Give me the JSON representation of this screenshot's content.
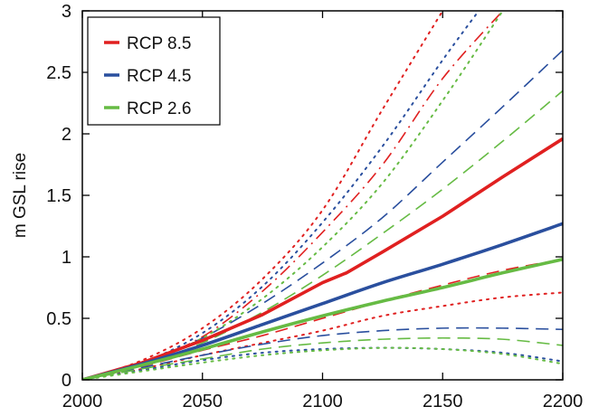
{
  "chart_data": {
    "type": "line",
    "title": "",
    "xlabel": "",
    "ylabel": "m GSL rise",
    "xlim": [
      2000,
      2200
    ],
    "ylim": [
      0,
      3
    ],
    "x_ticks": [
      2000,
      2050,
      2100,
      2150,
      2200
    ],
    "y_ticks": [
      0,
      0.5,
      1,
      1.5,
      2,
      2.5,
      3
    ],
    "y_tick_labels": [
      "0",
      "0.5",
      "1",
      "1.5",
      "2",
      "2.5",
      "3"
    ],
    "grid": false,
    "legend_position": "top-left",
    "legend": [
      {
        "label": "RCP 8.5",
        "color": "#e02020"
      },
      {
        "label": "RCP 4.5",
        "color": "#2a4f9e"
      },
      {
        "label": "RCP 2.6",
        "color": "#66bb44"
      }
    ],
    "series": [
      {
        "scenario": "RCP 8.5",
        "style": "dotted-outer-upper",
        "color": "#e02020",
        "x": [
          2000,
          2025,
          2050,
          2075,
          2100,
          2125,
          2150
        ],
        "y": [
          0,
          0.16,
          0.42,
          0.82,
          1.38,
          2.2,
          3.0
        ]
      },
      {
        "scenario": "RCP 8.5",
        "style": "dashdot-upper",
        "color": "#e02020",
        "x": [
          2000,
          2025,
          2050,
          2075,
          2100,
          2125,
          2150,
          2175
        ],
        "y": [
          0,
          0.14,
          0.35,
          0.72,
          1.2,
          1.75,
          2.45,
          3.0
        ]
      },
      {
        "scenario": "RCP 8.5",
        "style": "solid",
        "color": "#e02020",
        "x": [
          2000,
          2025,
          2050,
          2075,
          2100,
          2110,
          2125,
          2150,
          2175,
          2200
        ],
        "y": [
          0,
          0.14,
          0.32,
          0.53,
          0.79,
          0.87,
          1.04,
          1.33,
          1.65,
          1.96
        ]
      },
      {
        "scenario": "RCP 8.5",
        "style": "dashed-lower",
        "color": "#e02020",
        "x": [
          2000,
          2025,
          2050,
          2075,
          2100,
          2125,
          2150,
          2175,
          2200
        ],
        "y": [
          0,
          0.11,
          0.24,
          0.36,
          0.5,
          0.64,
          0.77,
          0.89,
          0.98
        ]
      },
      {
        "scenario": "RCP 8.5",
        "style": "dotted-lower",
        "color": "#e02020",
        "x": [
          2000,
          2025,
          2050,
          2075,
          2100,
          2125,
          2150,
          2175,
          2200
        ],
        "y": [
          0,
          0.09,
          0.2,
          0.3,
          0.4,
          0.52,
          0.6,
          0.67,
          0.71
        ]
      },
      {
        "scenario": "RCP 4.5",
        "style": "dotted-upper",
        "color": "#2a4f9e",
        "x": [
          2000,
          2025,
          2050,
          2075,
          2100,
          2125,
          2150,
          2165
        ],
        "y": [
          0,
          0.14,
          0.38,
          0.76,
          1.28,
          1.9,
          2.6,
          3.0
        ]
      },
      {
        "scenario": "RCP 4.5",
        "style": "dashed-upper",
        "color": "#2a4f9e",
        "x": [
          2000,
          2025,
          2050,
          2075,
          2100,
          2125,
          2150,
          2175,
          2200
        ],
        "y": [
          0,
          0.13,
          0.34,
          0.62,
          0.95,
          1.32,
          1.77,
          2.22,
          2.68
        ]
      },
      {
        "scenario": "RCP 4.5",
        "style": "solid",
        "color": "#2a4f9e",
        "x": [
          2000,
          2025,
          2050,
          2075,
          2100,
          2125,
          2150,
          2175,
          2200
        ],
        "y": [
          0,
          0.13,
          0.28,
          0.45,
          0.62,
          0.79,
          0.94,
          1.1,
          1.27
        ]
      },
      {
        "scenario": "RCP 4.5",
        "style": "dashed-lower",
        "color": "#2a4f9e",
        "x": [
          2000,
          2025,
          2050,
          2075,
          2100,
          2125,
          2150,
          2175,
          2200
        ],
        "y": [
          0,
          0.1,
          0.2,
          0.29,
          0.36,
          0.4,
          0.42,
          0.42,
          0.41
        ]
      },
      {
        "scenario": "RCP 4.5",
        "style": "dotted-lower",
        "color": "#2a4f9e",
        "x": [
          2000,
          2025,
          2050,
          2075,
          2100,
          2125,
          2150,
          2175,
          2200
        ],
        "y": [
          0,
          0.08,
          0.16,
          0.22,
          0.25,
          0.26,
          0.25,
          0.22,
          0.15
        ]
      },
      {
        "scenario": "RCP 2.6",
        "style": "dotted-upper",
        "color": "#66bb44",
        "x": [
          2000,
          2025,
          2050,
          2075,
          2100,
          2125,
          2150,
          2175
        ],
        "y": [
          0,
          0.13,
          0.34,
          0.66,
          1.08,
          1.6,
          2.27,
          3.0
        ]
      },
      {
        "scenario": "RCP 2.6",
        "style": "dashed-upper",
        "color": "#66bb44",
        "x": [
          2000,
          2025,
          2050,
          2075,
          2100,
          2125,
          2150,
          2175,
          2200
        ],
        "y": [
          0,
          0.12,
          0.3,
          0.55,
          0.85,
          1.19,
          1.55,
          1.94,
          2.35
        ]
      },
      {
        "scenario": "RCP 2.6",
        "style": "solid",
        "color": "#66bb44",
        "x": [
          2000,
          2025,
          2050,
          2075,
          2100,
          2125,
          2150,
          2175,
          2200
        ],
        "y": [
          0,
          0.12,
          0.25,
          0.39,
          0.52,
          0.64,
          0.75,
          0.87,
          0.98
        ]
      },
      {
        "scenario": "RCP 2.6",
        "style": "dashed-lower",
        "color": "#66bb44",
        "x": [
          2000,
          2025,
          2050,
          2075,
          2100,
          2125,
          2150,
          2175,
          2200
        ],
        "y": [
          0,
          0.09,
          0.17,
          0.25,
          0.3,
          0.33,
          0.34,
          0.33,
          0.28
        ]
      },
      {
        "scenario": "RCP 2.6",
        "style": "dotted-lower",
        "color": "#66bb44",
        "x": [
          2000,
          2025,
          2050,
          2075,
          2100,
          2125,
          2150,
          2175,
          2200
        ],
        "y": [
          0,
          0.07,
          0.14,
          0.2,
          0.24,
          0.26,
          0.25,
          0.21,
          0.13
        ]
      }
    ]
  }
}
